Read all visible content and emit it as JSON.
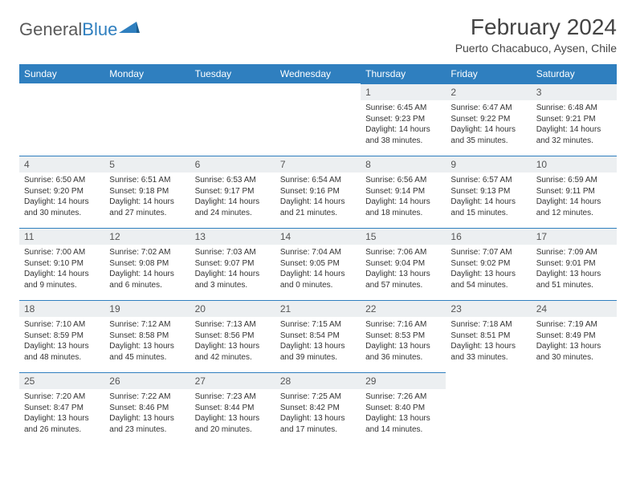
{
  "logo": {
    "text_gray": "General",
    "text_blue": "Blue"
  },
  "title": "February 2024",
  "location": "Puerto Chacabuco, Aysen, Chile",
  "colors": {
    "header_bg": "#2f7fbf",
    "header_text": "#ffffff",
    "daynum_bg": "#eceff1",
    "daynum_border": "#2f7fbf",
    "body_text": "#333333"
  },
  "day_headers": [
    "Sunday",
    "Monday",
    "Tuesday",
    "Wednesday",
    "Thursday",
    "Friday",
    "Saturday"
  ],
  "weeks": [
    [
      null,
      null,
      null,
      null,
      {
        "n": "1",
        "sunrise": "6:45 AM",
        "sunset": "9:23 PM",
        "dl1": "Daylight: 14 hours",
        "dl2": "and 38 minutes."
      },
      {
        "n": "2",
        "sunrise": "6:47 AM",
        "sunset": "9:22 PM",
        "dl1": "Daylight: 14 hours",
        "dl2": "and 35 minutes."
      },
      {
        "n": "3",
        "sunrise": "6:48 AM",
        "sunset": "9:21 PM",
        "dl1": "Daylight: 14 hours",
        "dl2": "and 32 minutes."
      }
    ],
    [
      {
        "n": "4",
        "sunrise": "6:50 AM",
        "sunset": "9:20 PM",
        "dl1": "Daylight: 14 hours",
        "dl2": "and 30 minutes."
      },
      {
        "n": "5",
        "sunrise": "6:51 AM",
        "sunset": "9:18 PM",
        "dl1": "Daylight: 14 hours",
        "dl2": "and 27 minutes."
      },
      {
        "n": "6",
        "sunrise": "6:53 AM",
        "sunset": "9:17 PM",
        "dl1": "Daylight: 14 hours",
        "dl2": "and 24 minutes."
      },
      {
        "n": "7",
        "sunrise": "6:54 AM",
        "sunset": "9:16 PM",
        "dl1": "Daylight: 14 hours",
        "dl2": "and 21 minutes."
      },
      {
        "n": "8",
        "sunrise": "6:56 AM",
        "sunset": "9:14 PM",
        "dl1": "Daylight: 14 hours",
        "dl2": "and 18 minutes."
      },
      {
        "n": "9",
        "sunrise": "6:57 AM",
        "sunset": "9:13 PM",
        "dl1": "Daylight: 14 hours",
        "dl2": "and 15 minutes."
      },
      {
        "n": "10",
        "sunrise": "6:59 AM",
        "sunset": "9:11 PM",
        "dl1": "Daylight: 14 hours",
        "dl2": "and 12 minutes."
      }
    ],
    [
      {
        "n": "11",
        "sunrise": "7:00 AM",
        "sunset": "9:10 PM",
        "dl1": "Daylight: 14 hours",
        "dl2": "and 9 minutes."
      },
      {
        "n": "12",
        "sunrise": "7:02 AM",
        "sunset": "9:08 PM",
        "dl1": "Daylight: 14 hours",
        "dl2": "and 6 minutes."
      },
      {
        "n": "13",
        "sunrise": "7:03 AM",
        "sunset": "9:07 PM",
        "dl1": "Daylight: 14 hours",
        "dl2": "and 3 minutes."
      },
      {
        "n": "14",
        "sunrise": "7:04 AM",
        "sunset": "9:05 PM",
        "dl1": "Daylight: 14 hours",
        "dl2": "and 0 minutes."
      },
      {
        "n": "15",
        "sunrise": "7:06 AM",
        "sunset": "9:04 PM",
        "dl1": "Daylight: 13 hours",
        "dl2": "and 57 minutes."
      },
      {
        "n": "16",
        "sunrise": "7:07 AM",
        "sunset": "9:02 PM",
        "dl1": "Daylight: 13 hours",
        "dl2": "and 54 minutes."
      },
      {
        "n": "17",
        "sunrise": "7:09 AM",
        "sunset": "9:01 PM",
        "dl1": "Daylight: 13 hours",
        "dl2": "and 51 minutes."
      }
    ],
    [
      {
        "n": "18",
        "sunrise": "7:10 AM",
        "sunset": "8:59 PM",
        "dl1": "Daylight: 13 hours",
        "dl2": "and 48 minutes."
      },
      {
        "n": "19",
        "sunrise": "7:12 AM",
        "sunset": "8:58 PM",
        "dl1": "Daylight: 13 hours",
        "dl2": "and 45 minutes."
      },
      {
        "n": "20",
        "sunrise": "7:13 AM",
        "sunset": "8:56 PM",
        "dl1": "Daylight: 13 hours",
        "dl2": "and 42 minutes."
      },
      {
        "n": "21",
        "sunrise": "7:15 AM",
        "sunset": "8:54 PM",
        "dl1": "Daylight: 13 hours",
        "dl2": "and 39 minutes."
      },
      {
        "n": "22",
        "sunrise": "7:16 AM",
        "sunset": "8:53 PM",
        "dl1": "Daylight: 13 hours",
        "dl2": "and 36 minutes."
      },
      {
        "n": "23",
        "sunrise": "7:18 AM",
        "sunset": "8:51 PM",
        "dl1": "Daylight: 13 hours",
        "dl2": "and 33 minutes."
      },
      {
        "n": "24",
        "sunrise": "7:19 AM",
        "sunset": "8:49 PM",
        "dl1": "Daylight: 13 hours",
        "dl2": "and 30 minutes."
      }
    ],
    [
      {
        "n": "25",
        "sunrise": "7:20 AM",
        "sunset": "8:47 PM",
        "dl1": "Daylight: 13 hours",
        "dl2": "and 26 minutes."
      },
      {
        "n": "26",
        "sunrise": "7:22 AM",
        "sunset": "8:46 PM",
        "dl1": "Daylight: 13 hours",
        "dl2": "and 23 minutes."
      },
      {
        "n": "27",
        "sunrise": "7:23 AM",
        "sunset": "8:44 PM",
        "dl1": "Daylight: 13 hours",
        "dl2": "and 20 minutes."
      },
      {
        "n": "28",
        "sunrise": "7:25 AM",
        "sunset": "8:42 PM",
        "dl1": "Daylight: 13 hours",
        "dl2": "and 17 minutes."
      },
      {
        "n": "29",
        "sunrise": "7:26 AM",
        "sunset": "8:40 PM",
        "dl1": "Daylight: 13 hours",
        "dl2": "and 14 minutes."
      },
      null,
      null
    ]
  ]
}
